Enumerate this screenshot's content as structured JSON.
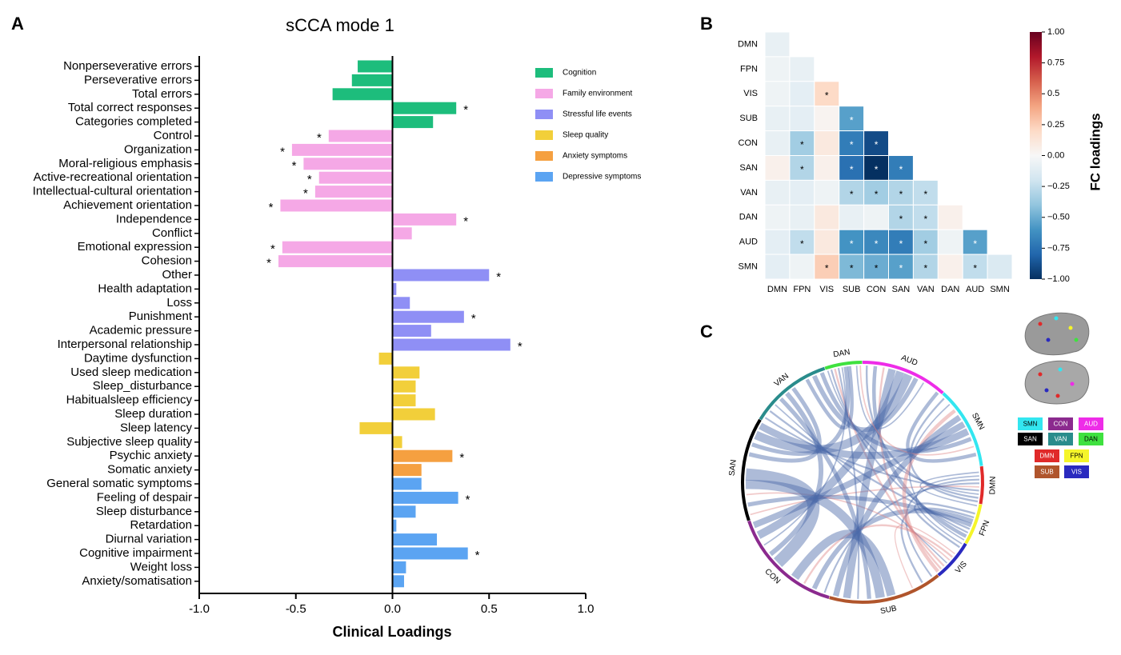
{
  "chart_data": [
    {
      "type": "hbar",
      "panel": "A",
      "title": "sCCA mode 1",
      "xlabel": "Clinical Loadings",
      "xlim": [
        -1,
        1
      ],
      "xticks": [
        {
          "value": -1,
          "label": "-1.0"
        },
        {
          "value": -0.5,
          "label": "-0.5"
        },
        {
          "value": 0,
          "label": "0.0"
        },
        {
          "value": 0.5,
          "label": "0.5"
        },
        {
          "value": 1,
          "label": "1.0"
        }
      ],
      "series": [
        {
          "name": "Cognition",
          "color": "#1dbd7c",
          "categories": [
            "Nonperseverative errors",
            "Perseverative errors",
            "Total errors",
            "Total correct responses",
            "Categories completed"
          ],
          "values": [
            -0.18,
            -0.21,
            -0.31,
            0.33,
            0.21
          ],
          "significance": [
            null,
            null,
            null,
            "*",
            null
          ]
        },
        {
          "name": "Family environment",
          "color": "#f5a8e6",
          "categories": [
            "Control",
            "Organization",
            "Moral-religious emphasis",
            "Active-recreational orientation",
            "Intellectual-cultural orientation",
            "Achievement orientation",
            "Independence",
            "Conflict",
            "Emotional expression",
            "Cohesion"
          ],
          "values": [
            -0.33,
            -0.52,
            -0.46,
            -0.38,
            -0.4,
            -0.58,
            0.33,
            0.1,
            -0.57,
            -0.59
          ],
          "significance": [
            "*",
            "*",
            "*",
            "*",
            "*",
            "*",
            "*",
            null,
            "*",
            "*"
          ]
        },
        {
          "name": "Stressful life events",
          "color": "#8f8ff5",
          "categories": [
            "Other",
            "Health adaptation",
            "Loss",
            "Punishment",
            "Academic pressure",
            "Interpersonal relationship"
          ],
          "values": [
            0.5,
            0.02,
            0.09,
            0.37,
            0.2,
            0.61
          ],
          "significance": [
            "*",
            null,
            null,
            "*",
            null,
            "*"
          ]
        },
        {
          "name": "Sleep quality",
          "color": "#f2cf3a",
          "categories": [
            "Daytime dysfunction",
            "Used sleep medication",
            "Sleep_disturbance",
            "Habitualsleep efficiency",
            "Sleep duration",
            "Sleep latency",
            "Subjective sleep quality"
          ],
          "values": [
            -0.07,
            0.14,
            0.12,
            0.12,
            0.22,
            -0.17,
            0.05
          ],
          "significance": [
            null,
            null,
            null,
            null,
            null,
            null,
            null
          ]
        },
        {
          "name": "Anxiety symptoms",
          "color": "#f5a040",
          "categories": [
            "Psychic anxiety",
            "Somatic anxiety"
          ],
          "values": [
            0.31,
            0.15
          ],
          "significance": [
            "*",
            null
          ]
        },
        {
          "name": "Depressive symptoms",
          "color": "#5ba4f2",
          "categories": [
            "General somatic symptoms",
            "Feeling of despair",
            "Sleep disturbance",
            "Retardation",
            "Diurnal variation",
            "Cognitive impairment",
            "Weight loss",
            "Anxiety/somatisation"
          ],
          "values": [
            0.15,
            0.34,
            0.12,
            0.02,
            0.23,
            0.39,
            0.07,
            0.06
          ],
          "significance": [
            null,
            "*",
            null,
            null,
            null,
            "*",
            null,
            null
          ]
        }
      ]
    },
    {
      "type": "heatmap",
      "panel": "B",
      "rows": [
        "DMN",
        "FPN",
        "VIS",
        "SUB",
        "CON",
        "SAN",
        "VAN",
        "DAN",
        "AUD",
        "SMN"
      ],
      "columns": [
        "DMN",
        "FPN",
        "VIS",
        "SUB",
        "CON",
        "SAN",
        "VAN",
        "DAN",
        "AUD",
        "SMN"
      ],
      "values": [
        [
          -0.08
        ],
        [
          -0.05,
          -0.08
        ],
        [
          -0.05,
          -0.1,
          0.2
        ],
        [
          -0.08,
          -0.1,
          0.03,
          -0.55
        ],
        [
          -0.08,
          -0.35,
          0.1,
          -0.7,
          -0.9
        ],
        [
          0.05,
          -0.3,
          0.05,
          -0.75,
          -1.0,
          -0.7
        ],
        [
          -0.08,
          -0.1,
          -0.05,
          -0.3,
          -0.35,
          -0.3,
          -0.25
        ],
        [
          -0.05,
          -0.08,
          0.1,
          -0.08,
          -0.05,
          -0.3,
          -0.25,
          0.05
        ],
        [
          -0.1,
          -0.25,
          0.1,
          -0.6,
          -0.65,
          -0.7,
          -0.35,
          -0.05,
          -0.55
        ],
        [
          -0.1,
          -0.05,
          0.25,
          -0.45,
          -0.5,
          -0.55,
          -0.3,
          0.05,
          -0.25,
          -0.15
        ]
      ],
      "significance": [
        [
          null
        ],
        [
          null,
          null
        ],
        [
          null,
          null,
          "*"
        ],
        [
          null,
          null,
          null,
          "*"
        ],
        [
          null,
          "*",
          null,
          "*",
          "*"
        ],
        [
          null,
          "*",
          null,
          "*",
          "*",
          "*"
        ],
        [
          null,
          null,
          null,
          "*",
          "*",
          "*",
          "*"
        ],
        [
          null,
          null,
          null,
          null,
          null,
          "*",
          "*",
          null
        ],
        [
          null,
          "*",
          null,
          "*",
          "*",
          "*",
          "*",
          null,
          "*"
        ],
        [
          null,
          null,
          "*",
          "*",
          "*",
          "*",
          "*",
          null,
          "*",
          null
        ]
      ],
      "colorbar": {
        "label": "FC loadings",
        "lim": [
          -1,
          1
        ],
        "ticks": [
          {
            "value": 1,
            "label": "1.00"
          },
          0.75,
          0.5,
          0.25,
          {
            "value": 0,
            "label": "0.00"
          },
          {
            "value": -0.25,
            "label": "−0.25"
          },
          {
            "value": -0.5,
            "label": "−0.50"
          },
          {
            "value": -0.75,
            "label": "−0.75"
          },
          {
            "value": -1,
            "label": "−1.00"
          }
        ]
      }
    },
    {
      "type": "chord",
      "panel": "C",
      "nodes": [
        {
          "name": "SMN",
          "color": "#33e6f0"
        },
        {
          "name": "CON",
          "color": "#8b2a8e"
        },
        {
          "name": "AUD",
          "color": "#ee2ce8"
        },
        {
          "name": "SAN",
          "color": "#000000"
        },
        {
          "name": "VAN",
          "color": "#2a8c8c"
        },
        {
          "name": "DAN",
          "color": "#3fe13f"
        },
        {
          "name": "DMN",
          "color": "#e02a2a"
        },
        {
          "name": "FPN",
          "color": "#f5f52a"
        },
        {
          "name": "SUB",
          "color": "#b0552c"
        },
        {
          "name": "VIS",
          "color": "#2a2abf"
        }
      ]
    }
  ]
}
